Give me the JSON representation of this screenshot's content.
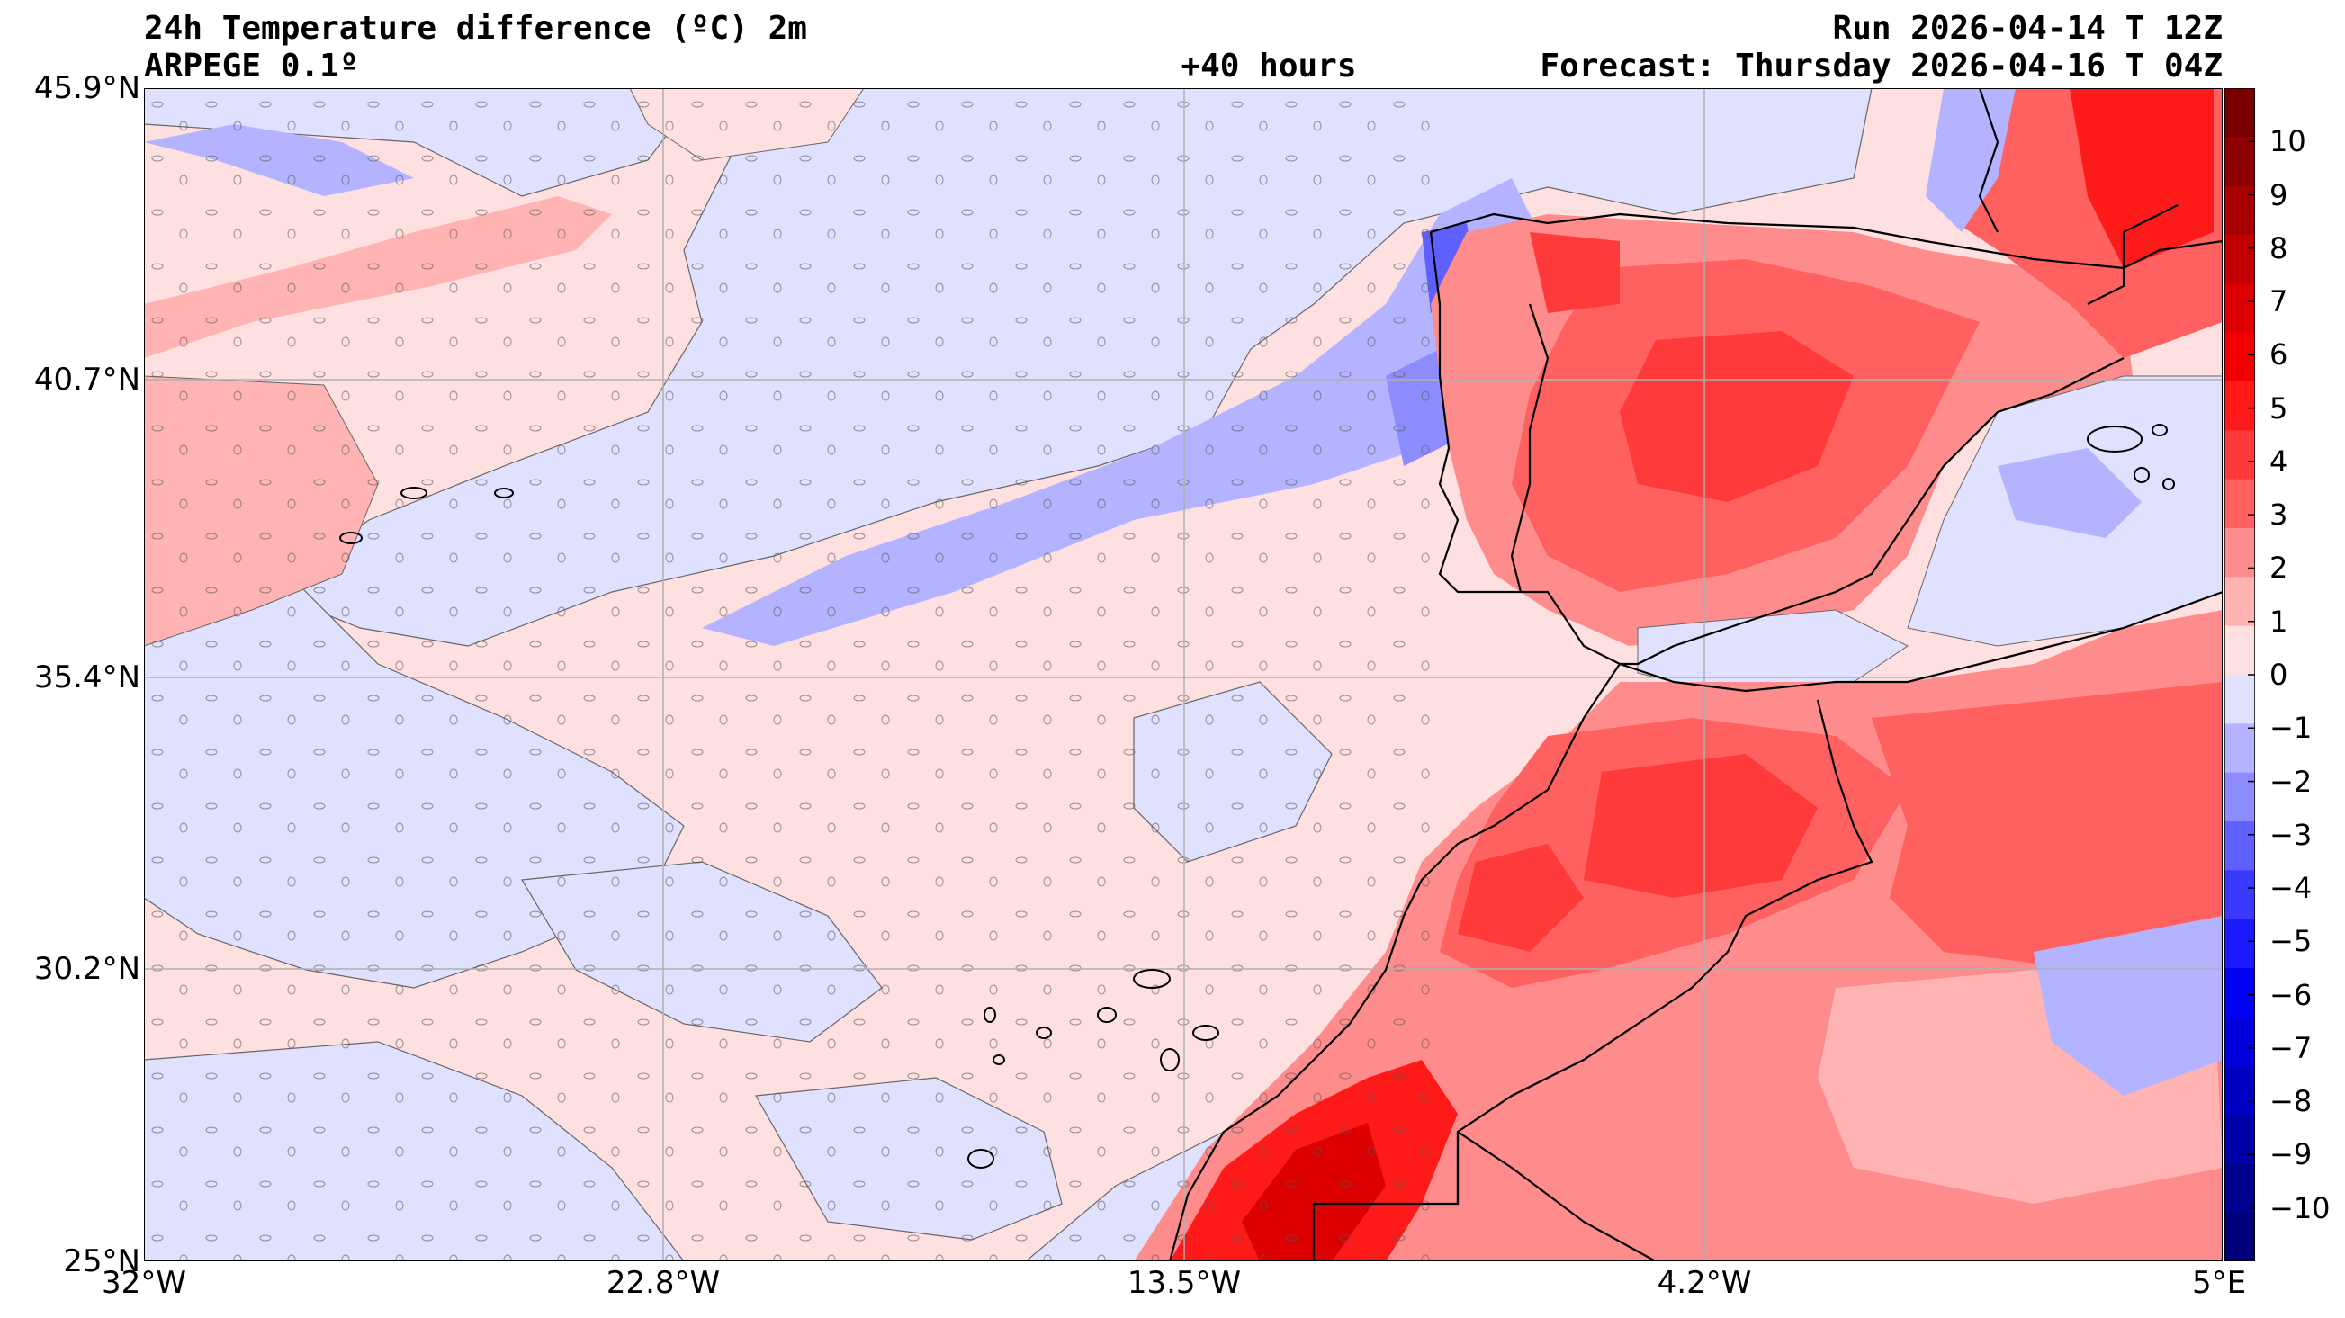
{
  "header": {
    "title_line1": "24h Temperature difference (ºC) 2m",
    "title_line2": "ARPEGE 0.1º",
    "lead_time": "+40 hours",
    "run": "Run 2026-04-14 T 12Z",
    "forecast": "Forecast: Thursday 2026-04-16 T 04Z"
  },
  "axes": {
    "lat_labels": [
      "45.9°N",
      "40.7°N",
      "35.4°N",
      "30.2°N",
      "25°N"
    ],
    "lat_values": [
      45.9,
      40.7,
      35.4,
      30.2,
      25.0
    ],
    "lon_labels": [
      "32°W",
      "22.8°W",
      "13.5°W",
      "4.2°W",
      "5°E"
    ],
    "lon_values": [
      -32,
      -22.8,
      -13.5,
      -4.2,
      5
    ],
    "lat_range": [
      25,
      45.9
    ],
    "lon_range": [
      -32,
      5
    ],
    "grid": true
  },
  "colorbar": {
    "labels": [
      "10",
      "9",
      "8",
      "7",
      "6",
      "5",
      "4",
      "3",
      "2",
      "1",
      "0",
      "−1",
      "−2",
      "−3",
      "−4",
      "−5",
      "−6",
      "−7",
      "−8",
      "−9",
      "−10"
    ],
    "values": [
      10,
      9,
      8,
      7,
      6,
      5,
      4,
      3,
      2,
      1,
      0,
      -1,
      -2,
      -3,
      -4,
      -5,
      -6,
      -7,
      -8,
      -9,
      -10
    ],
    "range": [
      -11,
      11
    ],
    "colors_top_to_bottom": [
      "#7a0000",
      "#8f0000",
      "#a80000",
      "#c20000",
      "#dc0000",
      "#f20000",
      "#ff1a1a",
      "#ff3a3a",
      "#ff6060",
      "#ff8c8c",
      "#ffb3b3",
      "#ffe0e0",
      "#e0e0ff",
      "#b3b3ff",
      "#8c8cff",
      "#6060ff",
      "#3a3aff",
      "#1a1aff",
      "#0000f2",
      "#0000dc",
      "#0000c2",
      "#0000a8",
      "#00008f",
      "#00007a"
    ]
  },
  "colors": {
    "positive_light": "#ffe0e0",
    "negative_light": "#e0e0ff",
    "coastline": "#000000",
    "gridline": "#b0b0b0"
  }
}
